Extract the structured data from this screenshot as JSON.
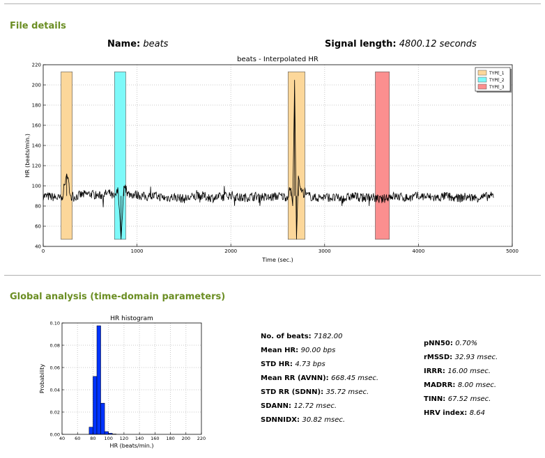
{
  "sections": {
    "file_details": "File details",
    "global_analysis": "Global analysis (time-domain parameters)"
  },
  "file": {
    "name_label": "Name:",
    "name_value": "beats",
    "length_label": "Signal length:",
    "length_value": "4800.12 seconds"
  },
  "stats_left": [
    {
      "label": "No. of beats:",
      "value": "7182.00"
    },
    {
      "label": "Mean HR:",
      "value": "90.00 bps"
    },
    {
      "label": "STD HR:",
      "value": "4.73 bps"
    },
    {
      "label": "Mean RR (AVNN):",
      "value": "668.45 msec."
    },
    {
      "label": "STD RR (SDNN):",
      "value": "35.72 msec."
    },
    {
      "label": "SDANN:",
      "value": "12.72 msec."
    },
    {
      "label": "SDNNIDX:",
      "value": "30.82 msec."
    }
  ],
  "stats_right": [
    {
      "label": "pNN50:",
      "value": "0.70%"
    },
    {
      "label": "rMSSD:",
      "value": "32.93 msec."
    },
    {
      "label": "IRRR:",
      "value": "16.00 msec."
    },
    {
      "label": "MADRR:",
      "value": "8.00 msec."
    },
    {
      "label": "TINN:",
      "value": "67.52 msec."
    },
    {
      "label": "HRV index:",
      "value": "8.64"
    }
  ],
  "chart_data": [
    {
      "type": "line",
      "title": "beats - Interpolated HR",
      "xlabel": "Time (sec.)",
      "ylabel": "HR (beats/min.)",
      "xlim": [
        0,
        5000
      ],
      "ylim": [
        40,
        220
      ],
      "xticks": [
        0,
        1000,
        2000,
        3000,
        4000,
        5000
      ],
      "yticks": [
        40,
        60,
        80,
        100,
        120,
        140,
        160,
        180,
        200,
        220
      ],
      "grid": true,
      "legend_position": "top-right",
      "series": [
        {
          "style": "black-line",
          "x": [
            0,
            100,
            200,
            250,
            300,
            400,
            500,
            600,
            700,
            760,
            800,
            830,
            860,
            900,
            1000,
            1100,
            1200,
            1300,
            1400,
            1500,
            1600,
            1700,
            1800,
            1900,
            2000,
            2100,
            2200,
            2300,
            2400,
            2500,
            2600,
            2640,
            2660,
            2680,
            2700,
            2720,
            2750,
            2800,
            2900,
            3000,
            3100,
            3200,
            3300,
            3400,
            3500,
            3600,
            3700,
            3800,
            3900,
            4000,
            4100,
            4200,
            4300,
            4400,
            4500,
            4600,
            4700,
            4800
          ],
          "y": [
            90,
            89,
            87,
            112,
            88,
            91,
            92,
            90,
            93,
            88,
            96,
            47,
            100,
            92,
            91,
            89,
            90,
            88,
            89,
            87,
            89,
            90,
            88,
            89,
            91,
            88,
            89,
            90,
            88,
            90,
            89,
            98,
            80,
            205,
            47,
            110,
            95,
            91,
            88,
            89,
            88,
            87,
            90,
            88,
            89,
            86,
            90,
            89,
            88,
            90,
            89,
            88,
            90,
            87,
            89,
            88,
            89,
            90
          ]
        }
      ],
      "bands": [
        {
          "name": "TYPE_1",
          "x0": 190,
          "x1": 310,
          "color": "#fcd79a"
        },
        {
          "name": "TYPE_2",
          "x0": 760,
          "x1": 880,
          "color": "#7df9f9"
        },
        {
          "name": "TYPE_1",
          "x0": 2610,
          "x1": 2790,
          "color": "#fcd79a"
        },
        {
          "name": "TYPE_3",
          "x0": 3540,
          "x1": 3690,
          "color": "#fb8f8f"
        }
      ],
      "legend": [
        {
          "name": "TYPE_1",
          "color": "#fcd79a"
        },
        {
          "name": "TYPE_2",
          "color": "#7df9f9"
        },
        {
          "name": "TYPE_3",
          "color": "#fb8f8f"
        }
      ]
    },
    {
      "type": "bar",
      "title": "HR histogram",
      "xlabel": "HR (beats/min.)",
      "ylabel": "Probability",
      "xlim": [
        40,
        220
      ],
      "ylim": [
        0,
        0.1
      ],
      "xticks": [
        40,
        60,
        80,
        100,
        120,
        140,
        160,
        180,
        200,
        220
      ],
      "yticks": [
        "0.00",
        "0.02",
        "0.04",
        "0.06",
        "0.08",
        "0.10"
      ],
      "grid": true,
      "bin_width": 5,
      "bins": [
        75,
        80,
        85,
        90,
        95,
        100,
        105
      ],
      "values": [
        0.0065,
        0.052,
        0.0975,
        0.028,
        0.0025,
        0.001,
        0.0003
      ],
      "color": "#0033ff"
    }
  ]
}
